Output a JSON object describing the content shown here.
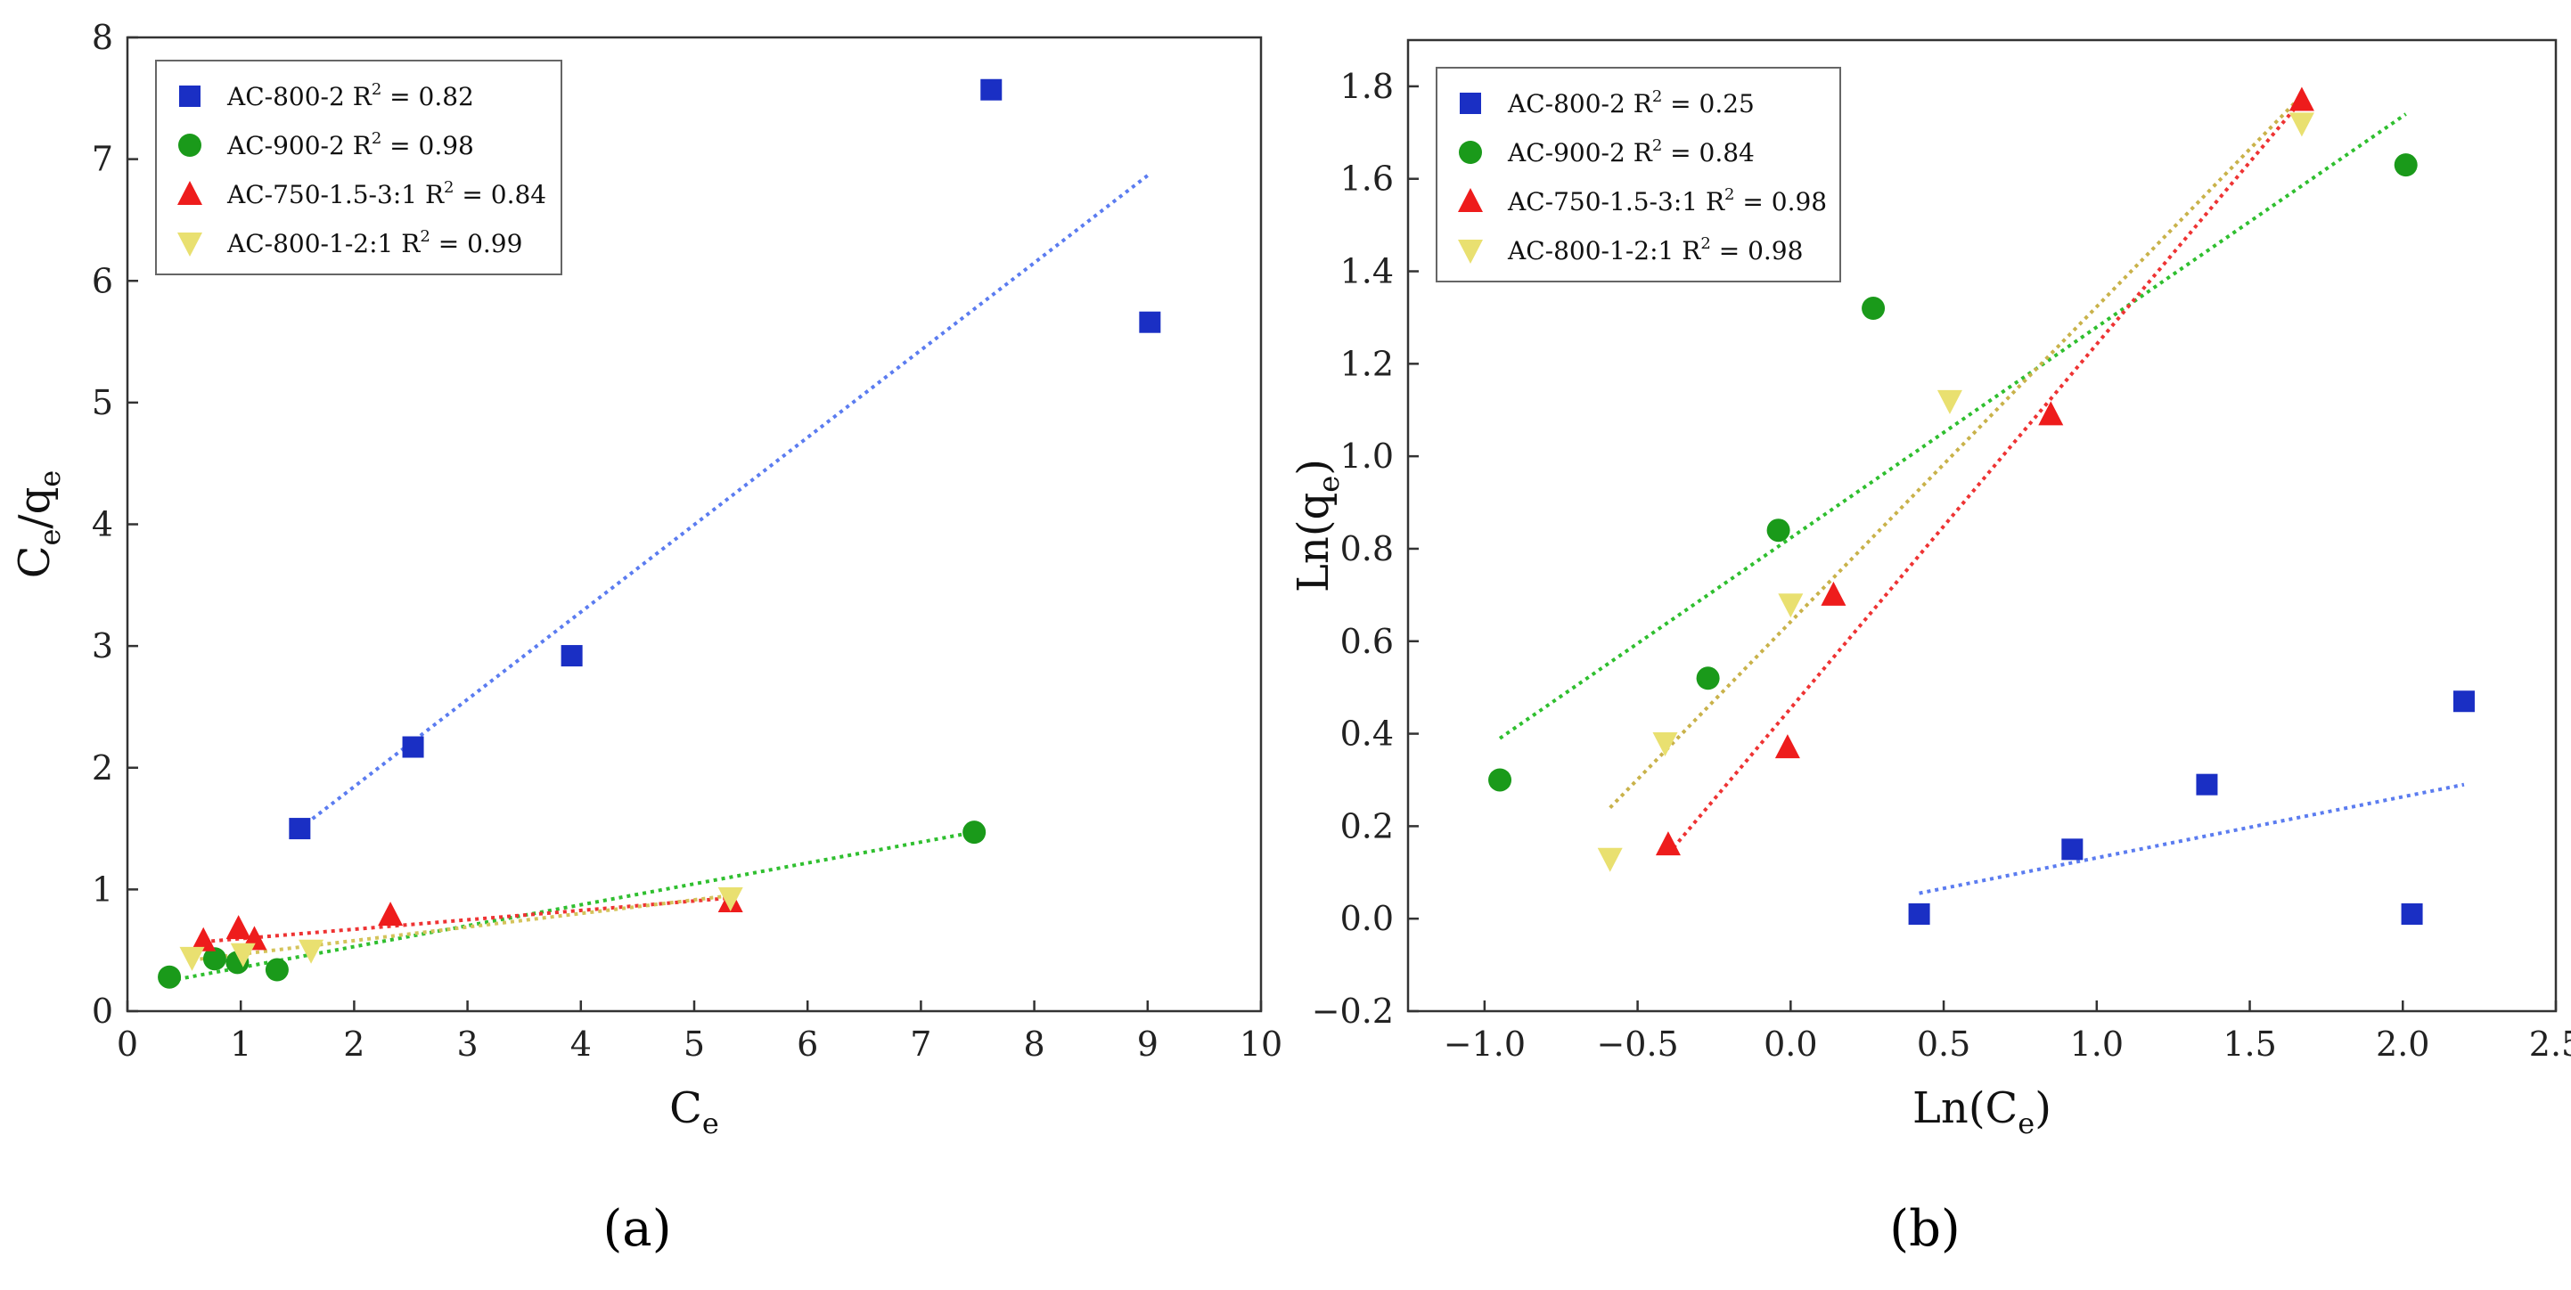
{
  "chart_data": [
    {
      "type": "scatter",
      "panel_label": "(a)",
      "xlabel": {
        "main": "C",
        "sub": "e"
      },
      "ylabel": {
        "main": "C",
        "sub1": "e",
        "slash": "/q",
        "sub2": "e"
      },
      "xlim": [
        0,
        10
      ],
      "ylim": [
        0,
        8
      ],
      "xticks": [
        "0",
        "1",
        "2",
        "3",
        "4",
        "5",
        "6",
        "7",
        "8",
        "9",
        "10"
      ],
      "yticks": [
        "0",
        "1",
        "2",
        "3",
        "4",
        "5",
        "6",
        "7",
        "8"
      ],
      "legend_position": "top-left",
      "series": [
        {
          "name": "AC-800-2",
          "r2": "0.82",
          "marker": "square",
          "color": "#1a2fc4",
          "fit_color": "#5b7cf0",
          "points": [
            [
              1.52,
              1.5
            ],
            [
              2.52,
              2.17
            ],
            [
              3.92,
              2.92
            ],
            [
              7.62,
              7.57
            ],
            [
              9.02,
              5.66
            ]
          ],
          "fit": [
            [
              1.52,
              1.5
            ],
            [
              9.02,
              6.88
            ]
          ]
        },
        {
          "name": "AC-900-2",
          "r2": "0.98",
          "marker": "circle",
          "color": "#1a9a1a",
          "fit_color": "#2fbf2f",
          "points": [
            [
              0.37,
              0.28
            ],
            [
              0.77,
              0.43
            ],
            [
              0.97,
              0.4
            ],
            [
              1.32,
              0.34
            ],
            [
              7.47,
              1.47
            ]
          ],
          "fit": [
            [
              0.37,
              0.25
            ],
            [
              7.47,
              1.47
            ]
          ]
        },
        {
          "name": "AC-750-1.5-3:1",
          "r2": "0.84",
          "marker": "triangle-up",
          "color": "#ee1c1c",
          "fit_color": "#ee3333",
          "points": [
            [
              0.67,
              0.58
            ],
            [
              0.98,
              0.68
            ],
            [
              1.12,
              0.59
            ],
            [
              2.32,
              0.79
            ],
            [
              5.32,
              0.9
            ]
          ],
          "fit": [
            [
              0.67,
              0.57
            ],
            [
              5.32,
              0.93
            ]
          ]
        },
        {
          "name": "AC-800-1-2:1",
          "r2": "0.99",
          "marker": "triangle-down",
          "color": "#e9e070",
          "fit_color": "#d4c35a",
          "points": [
            [
              0.57,
              0.44
            ],
            [
              1.02,
              0.47
            ],
            [
              1.62,
              0.5
            ],
            [
              5.32,
              0.93
            ]
          ],
          "fit": [
            [
              0.57,
              0.42
            ],
            [
              5.32,
              0.95
            ]
          ]
        }
      ]
    },
    {
      "type": "scatter",
      "panel_label": "(b)",
      "xlabel": {
        "main": "Ln(C",
        "sub": "e",
        "close": ")"
      },
      "ylabel": {
        "main": "Ln(q",
        "sub": "e",
        "close": ")"
      },
      "xlim": [
        -1.25,
        2.5
      ],
      "ylim": [
        -0.2,
        1.9
      ],
      "xticks": [
        "−1.0",
        "−0.5",
        "0.0",
        "0.5",
        "1.0",
        "1.5",
        "2.0",
        "2.5"
      ],
      "yticks": [
        "−0.2",
        "0.0",
        "0.2",
        "0.4",
        "0.6",
        "0.8",
        "1.0",
        "1.2",
        "1.4",
        "1.6",
        "1.8"
      ],
      "legend_position": "top-left",
      "series": [
        {
          "name": "AC-800-2",
          "r2": "0.25",
          "marker": "square",
          "color": "#1a2fc4",
          "fit_color": "#5b7cf0",
          "points": [
            [
              0.42,
              0.01
            ],
            [
              0.92,
              0.15
            ],
            [
              1.36,
              0.29
            ],
            [
              2.03,
              0.01
            ],
            [
              2.2,
              0.47
            ]
          ],
          "fit": [
            [
              0.42,
              0.055
            ],
            [
              2.2,
              0.29
            ]
          ]
        },
        {
          "name": "AC-900-2",
          "r2": "0.84",
          "marker": "circle",
          "color": "#1a9a1a",
          "fit_color": "#2fbf2f",
          "points": [
            [
              -0.95,
              0.3
            ],
            [
              -0.27,
              0.52
            ],
            [
              -0.04,
              0.84
            ],
            [
              0.27,
              1.32
            ],
            [
              2.01,
              1.63
            ]
          ],
          "fit": [
            [
              -0.95,
              0.39
            ],
            [
              2.01,
              1.74
            ]
          ]
        },
        {
          "name": "AC-750-1.5-3:1",
          "r2": "0.98",
          "marker": "triangle-up",
          "color": "#ee1c1c",
          "fit_color": "#ee3333",
          "points": [
            [
              -0.4,
              0.16
            ],
            [
              -0.01,
              0.37
            ],
            [
              0.14,
              0.7
            ],
            [
              0.85,
              1.09
            ],
            [
              1.67,
              1.77
            ]
          ],
          "fit": [
            [
              -0.4,
              0.14
            ],
            [
              1.67,
              1.77
            ]
          ]
        },
        {
          "name": "AC-800-1-2:1",
          "r2": "0.98",
          "marker": "triangle-down",
          "color": "#e9e070",
          "fit_color": "#c9b24a",
          "points": [
            [
              -0.59,
              0.13
            ],
            [
              -0.41,
              0.38
            ],
            [
              0.0,
              0.68
            ],
            [
              0.52,
              1.12
            ],
            [
              1.67,
              1.72
            ]
          ],
          "fit": [
            [
              -0.59,
              0.24
            ],
            [
              1.67,
              1.78
            ]
          ]
        }
      ]
    }
  ]
}
